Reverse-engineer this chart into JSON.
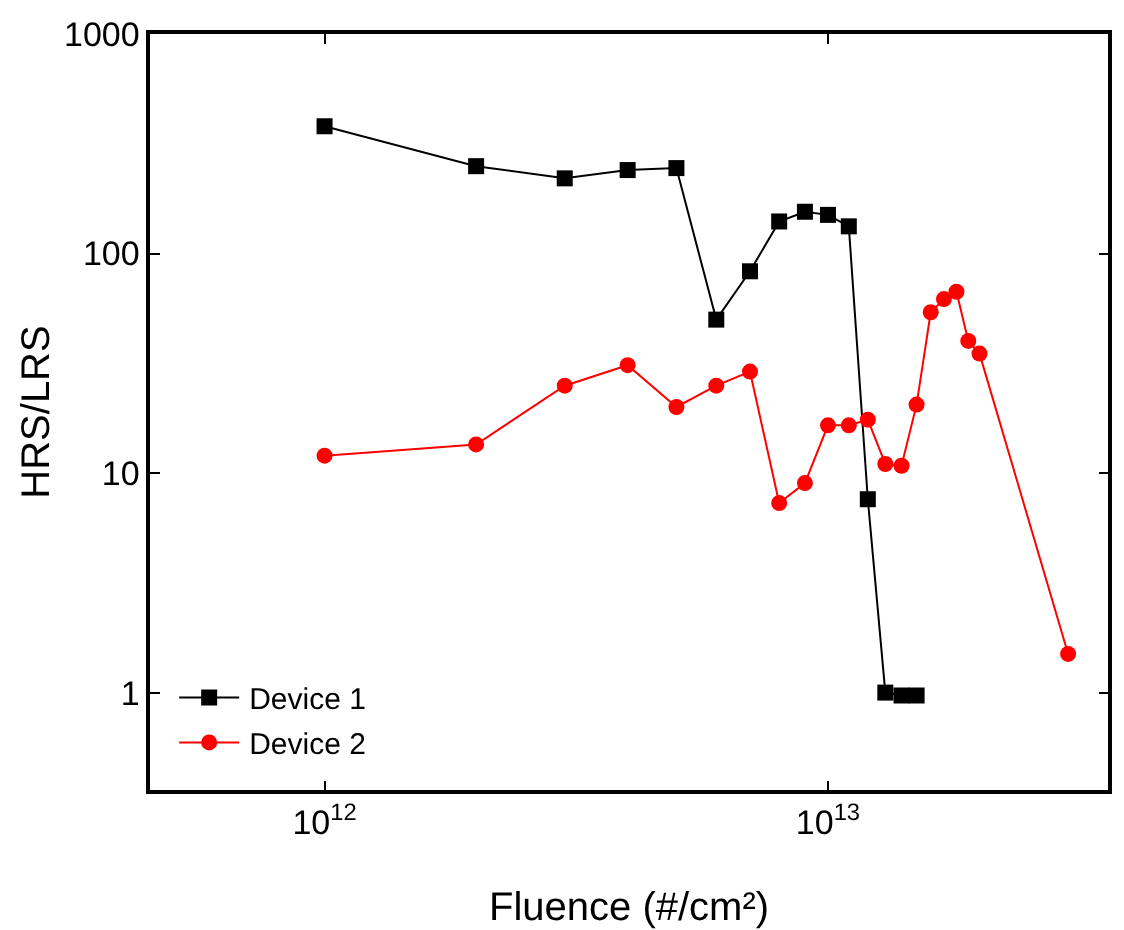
{
  "chart_data": {
    "type": "line",
    "xlabel": "Fluence (#/cm²)",
    "ylabel": "HRS/LRS",
    "log": "xy",
    "grid": false,
    "legend": "bottom left",
    "xlim": [
      450000000000.0,
      36000000000000.0
    ],
    "xticks": [
      {
        "value": 1000000000000.0,
        "label": "10$^{12}$"
      },
      {
        "value": 10000000000000.0,
        "label": "10$^{13}$"
      }
    ],
    "ylim": [
      0.36,
      1000
    ],
    "yticks": [
      1,
      10,
      100,
      1000
    ],
    "line_style": "solid",
    "series": [
      {
        "name": "Device 1",
        "color": "#000000",
        "marker": "square",
        "x": [
          1000000000000.0,
          2000000000000.0,
          3000000000000.0,
          4000000000000.0,
          5000000000000.0,
          6000000000000.0,
          7000000000000.0,
          8000000000000.0,
          9000000000000.0,
          10000000000000.0,
          11000000000000.0,
          12000000000000.0,
          13000000000000.0,
          14000000000000.0,
          15000000000000.0
        ],
        "values": [
          380,
          250,
          220,
          240,
          245,
          50,
          83,
          140,
          155,
          150,
          133,
          7.6,
          1,
          0.97,
          0.97
        ]
      },
      {
        "name": "Device 2",
        "color": "#ff0000",
        "marker": "circle",
        "x": [
          1000000000000.0,
          2000000000000.0,
          3000000000000.0,
          4000000000000.0,
          5000000000000.0,
          6000000000000.0,
          7000000000000.0,
          8000000000000.0,
          9000000000000.0,
          10000000000000.0,
          11000000000000.0,
          12000000000000.0,
          13000000000000.0,
          14000000000000.0,
          15000000000000.0,
          16000000000000.0,
          17000000000000.0,
          18000000000000.0,
          19000000000000.0,
          20000000000000.0,
          30000000000000.0
        ],
        "values": [
          12,
          13.5,
          25,
          31,
          20,
          25,
          29,
          7.3,
          9,
          16.5,
          16.5,
          17.5,
          11,
          10.8,
          20.5,
          54,
          62,
          67,
          40,
          35,
          1.5
        ]
      }
    ]
  }
}
